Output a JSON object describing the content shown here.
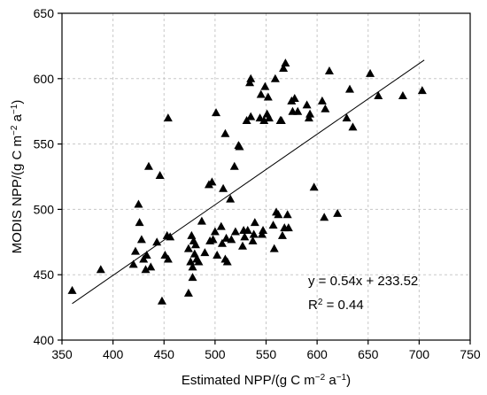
{
  "chart_data": {
    "type": "scatter",
    "xlabel": {
      "pre": "Estimated NPP/(g C m",
      "sup1": "−2",
      "mid": " a",
      "sup2": "−1",
      "post": ")"
    },
    "ylabel": {
      "pre": "MODIS NPP/(g C m",
      "sup1": "−2",
      "mid": " a",
      "sup2": "−1",
      "post": ")"
    },
    "xlim": [
      350,
      750
    ],
    "ylim": [
      400,
      650
    ],
    "xticks": [
      350,
      400,
      450,
      500,
      550,
      600,
      650,
      700,
      750
    ],
    "yticks": [
      400,
      450,
      500,
      550,
      600,
      650
    ],
    "grid": true,
    "marker": "triangle",
    "fit_line": {
      "slope": 0.54,
      "intercept": 233.52,
      "x_range": [
        360,
        705
      ]
    },
    "equation": "y = 0.54x + 233.52",
    "r2": {
      "pre": "R",
      "sup": "2",
      "post": " = 0.44"
    },
    "points": [
      [
        360,
        438
      ],
      [
        388,
        454
      ],
      [
        420,
        458
      ],
      [
        422,
        468
      ],
      [
        425,
        504
      ],
      [
        426,
        490
      ],
      [
        428,
        477
      ],
      [
        430,
        462
      ],
      [
        432,
        454
      ],
      [
        433,
        465
      ],
      [
        435,
        533
      ],
      [
        437,
        456
      ],
      [
        443,
        475
      ],
      [
        446,
        526
      ],
      [
        448,
        430
      ],
      [
        451,
        465
      ],
      [
        453,
        480
      ],
      [
        454,
        570
      ],
      [
        454,
        462
      ],
      [
        456,
        479
      ],
      [
        474,
        436
      ],
      [
        474,
        470
      ],
      [
        476,
        460
      ],
      [
        477,
        480
      ],
      [
        478,
        456
      ],
      [
        478,
        448
      ],
      [
        479,
        476
      ],
      [
        480,
        466
      ],
      [
        481,
        473
      ],
      [
        482,
        462
      ],
      [
        484,
        460
      ],
      [
        487,
        491
      ],
      [
        490,
        467
      ],
      [
        494,
        519
      ],
      [
        495,
        476
      ],
      [
        497,
        521
      ],
      [
        498,
        477
      ],
      [
        500,
        483
      ],
      [
        501,
        574
      ],
      [
        502,
        465
      ],
      [
        506,
        487
      ],
      [
        507,
        474
      ],
      [
        508,
        516
      ],
      [
        510,
        462
      ],
      [
        510,
        558
      ],
      [
        511,
        478
      ],
      [
        512,
        460
      ],
      [
        515,
        508
      ],
      [
        516,
        477
      ],
      [
        519,
        533
      ],
      [
        520,
        483
      ],
      [
        523,
        549
      ],
      [
        524,
        548
      ],
      [
        527,
        472
      ],
      [
        528,
        484
      ],
      [
        529,
        479
      ],
      [
        531,
        568
      ],
      [
        532,
        484
      ],
      [
        534,
        597
      ],
      [
        535,
        600
      ],
      [
        535,
        571
      ],
      [
        537,
        476
      ],
      [
        538,
        481
      ],
      [
        539,
        490
      ],
      [
        544,
        570
      ],
      [
        545,
        588
      ],
      [
        546,
        481
      ],
      [
        547,
        484
      ],
      [
        548,
        568
      ],
      [
        549,
        594
      ],
      [
        551,
        573
      ],
      [
        552,
        586
      ],
      [
        553,
        570
      ],
      [
        557,
        488
      ],
      [
        558,
        470
      ],
      [
        559,
        600
      ],
      [
        560,
        498
      ],
      [
        562,
        496
      ],
      [
        564,
        568
      ],
      [
        565,
        568
      ],
      [
        566,
        480
      ],
      [
        567,
        608
      ],
      [
        568,
        486
      ],
      [
        569,
        612
      ],
      [
        571,
        496
      ],
      [
        572,
        486
      ],
      [
        575,
        583
      ],
      [
        576,
        575
      ],
      [
        578,
        585
      ],
      [
        581,
        575
      ],
      [
        590,
        580
      ],
      [
        592,
        570
      ],
      [
        593,
        573
      ],
      [
        597,
        517
      ],
      [
        605,
        583
      ],
      [
        607,
        494
      ],
      [
        608,
        577
      ],
      [
        612,
        606
      ],
      [
        620,
        497
      ],
      [
        629,
        570
      ],
      [
        632,
        592
      ],
      [
        635,
        563
      ],
      [
        652,
        604
      ],
      [
        660,
        587
      ],
      [
        684,
        587
      ],
      [
        703,
        591
      ]
    ]
  }
}
